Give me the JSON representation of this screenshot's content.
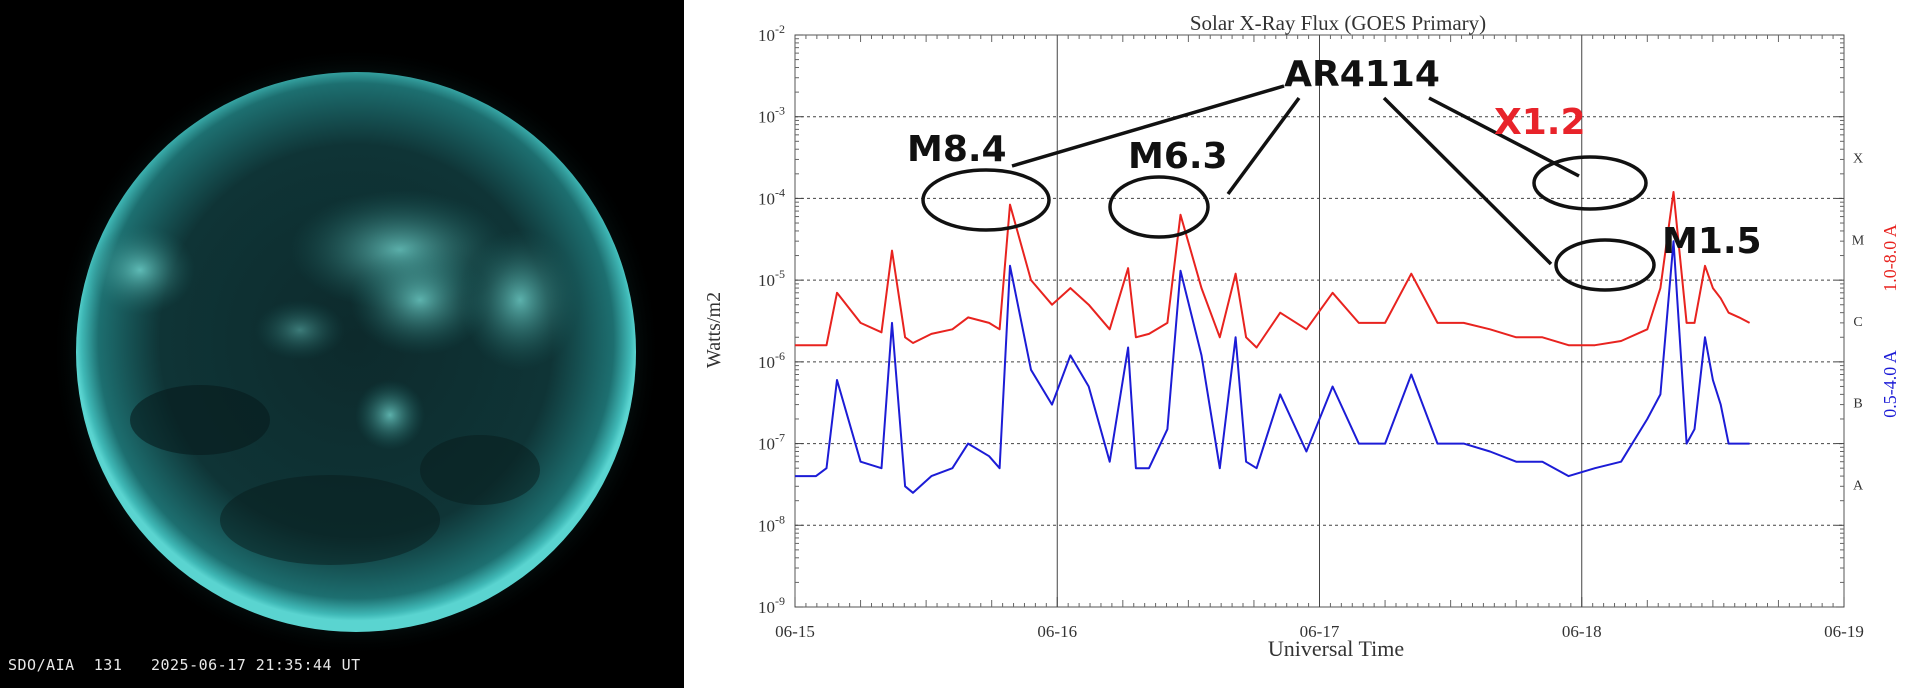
{
  "image": {
    "caption_instrument": "SDO/AIA",
    "caption_channel": "131",
    "caption_datetime": "2025-06-17 21:35:44 UT"
  },
  "chart_data": {
    "type": "line",
    "title": "Solar X-Ray Flux (GOES Primary)",
    "ylabel": "Watts/m2",
    "xlabel": "Universal Time",
    "y_scale": "log",
    "ylim": [
      1e-09,
      0.01
    ],
    "xlim": [
      "06-15",
      "06-19"
    ],
    "x_ticks": [
      "06-15",
      "06-16",
      "06-17",
      "06-18",
      "06-19"
    ],
    "y_ticks": [
      {
        "base": "10",
        "exp": "-9",
        "value": 1e-09
      },
      {
        "base": "10",
        "exp": "-8",
        "value": 1e-08
      },
      {
        "base": "10",
        "exp": "-7",
        "value": 1e-07
      },
      {
        "base": "10",
        "exp": "-6",
        "value": 1e-06
      },
      {
        "base": "10",
        "exp": "-5",
        "value": 1e-05
      },
      {
        "base": "10",
        "exp": "-4",
        "value": 0.0001
      },
      {
        "base": "10",
        "exp": "-3",
        "value": 0.001
      },
      {
        "base": "10",
        "exp": "-2",
        "value": 0.01
      }
    ],
    "flare_classes": [
      {
        "label": "A",
        "value": 1e-08
      },
      {
        "label": "B",
        "value": 1e-07
      },
      {
        "label": "C",
        "value": 1e-06
      },
      {
        "label": "M",
        "value": 1e-05
      },
      {
        "label": "X",
        "value": 0.0001
      }
    ],
    "grid": true,
    "colors": {
      "long_channel": "#e8231f",
      "short_channel": "#1c1cd6",
      "x_label": "#e8232a",
      "annotation": "#111111"
    },
    "series": [
      {
        "name": "1.0-8.0 A",
        "x": [
          0.0,
          0.12,
          0.16,
          0.25,
          0.33,
          0.37,
          0.42,
          0.45,
          0.52,
          0.6,
          0.66,
          0.74,
          0.78,
          0.82,
          0.9,
          0.98,
          1.05,
          1.12,
          1.2,
          1.27,
          1.3,
          1.35,
          1.42,
          1.47,
          1.55,
          1.62,
          1.68,
          1.72,
          1.76,
          1.85,
          1.95,
          2.05,
          2.15,
          2.25,
          2.35,
          2.45,
          2.55,
          2.65,
          2.75,
          2.85,
          2.95,
          3.05,
          3.15,
          3.25,
          3.3,
          3.35,
          3.4,
          3.43,
          3.47,
          3.5,
          3.53,
          3.56,
          3.6,
          3.64
        ],
        "values": [
          1.6e-06,
          1.6e-06,
          7e-06,
          3e-06,
          2.3e-06,
          2.3e-05,
          2e-06,
          1.7e-06,
          2.2e-06,
          2.5e-06,
          3.5e-06,
          3e-06,
          2.5e-06,
          8.4e-05,
          1e-05,
          5e-06,
          8e-06,
          5e-06,
          2.5e-06,
          1.4e-05,
          2e-06,
          2.2e-06,
          3e-06,
          6.3e-05,
          8e-06,
          2e-06,
          1.2e-05,
          2e-06,
          1.5e-06,
          4e-06,
          2.5e-06,
          7e-06,
          3e-06,
          3e-06,
          1.2e-05,
          3e-06,
          3e-06,
          2.5e-06,
          2e-06,
          2e-06,
          1.6e-06,
          1.6e-06,
          1.8e-06,
          2.5e-06,
          8e-06,
          0.00012,
          3e-06,
          3e-06,
          1.5e-05,
          8e-06,
          6e-06,
          4e-06,
          3.5e-06,
          3e-06
        ]
      },
      {
        "name": "0.5-4.0 A",
        "x": [
          0.0,
          0.08,
          0.12,
          0.16,
          0.25,
          0.33,
          0.37,
          0.42,
          0.45,
          0.52,
          0.6,
          0.66,
          0.74,
          0.78,
          0.82,
          0.9,
          0.98,
          1.05,
          1.12,
          1.2,
          1.27,
          1.3,
          1.35,
          1.42,
          1.47,
          1.55,
          1.62,
          1.68,
          1.72,
          1.76,
          1.85,
          1.95,
          2.05,
          2.15,
          2.25,
          2.35,
          2.45,
          2.55,
          2.65,
          2.75,
          2.85,
          2.95,
          3.05,
          3.15,
          3.25,
          3.3,
          3.35,
          3.4,
          3.43,
          3.47,
          3.5,
          3.53,
          3.56,
          3.6,
          3.64
        ],
        "values": [
          4e-08,
          4e-08,
          5e-08,
          6e-07,
          6e-08,
          5e-08,
          3e-06,
          3e-08,
          2.5e-08,
          4e-08,
          5e-08,
          1e-07,
          7e-08,
          5e-08,
          1.5e-05,
          8e-07,
          3e-07,
          1.2e-06,
          5e-07,
          6e-08,
          1.5e-06,
          5e-08,
          5e-08,
          1.5e-07,
          1.3e-05,
          1.2e-06,
          5e-08,
          2e-06,
          6e-08,
          5e-08,
          4e-07,
          8e-08,
          5e-07,
          1e-07,
          1e-07,
          7e-07,
          1e-07,
          1e-07,
          8e-08,
          6e-08,
          6e-08,
          4e-08,
          5e-08,
          6e-08,
          2e-07,
          4e-07,
          3e-05,
          1e-07,
          1.5e-07,
          2e-06,
          6e-07,
          3e-07,
          1e-07,
          1e-07,
          1e-07
        ]
      }
    ],
    "annotations": [
      {
        "label": "AR4114"
      },
      {
        "label": "M8.4"
      },
      {
        "label": "M6.3"
      },
      {
        "label": "X1.2"
      },
      {
        "label": "M1.5"
      }
    ]
  }
}
